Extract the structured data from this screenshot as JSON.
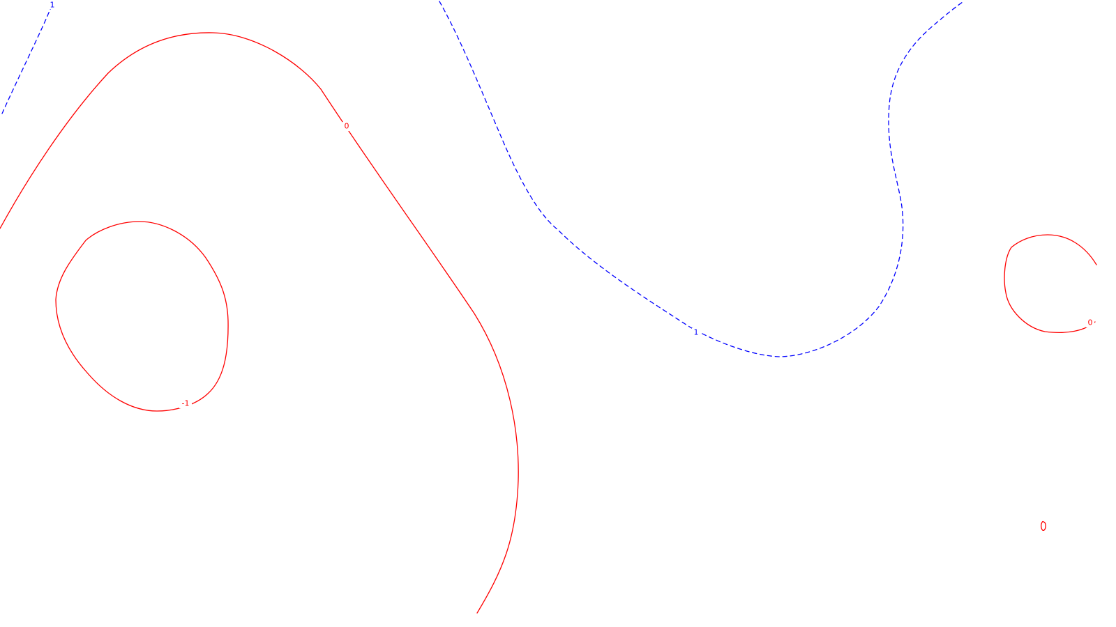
{
  "chart_data": {
    "type": "contour",
    "grid": false,
    "legend": "none",
    "levels": [
      {
        "level": 1,
        "label": "1",
        "color": "#0000ff",
        "line_style": "dashed",
        "contours": [
          "blue-upper-left",
          "blue-main"
        ]
      },
      {
        "level": 0,
        "label": "0",
        "color": "#ff0000",
        "line_style": "solid",
        "contours": [
          "red-big",
          "red-right-loop",
          "red-small-loop"
        ]
      },
      {
        "level": -1,
        "label": "-1",
        "color": "#ff0000",
        "line_style": "solid",
        "contours": [
          "red-left-loop"
        ]
      }
    ]
  }
}
